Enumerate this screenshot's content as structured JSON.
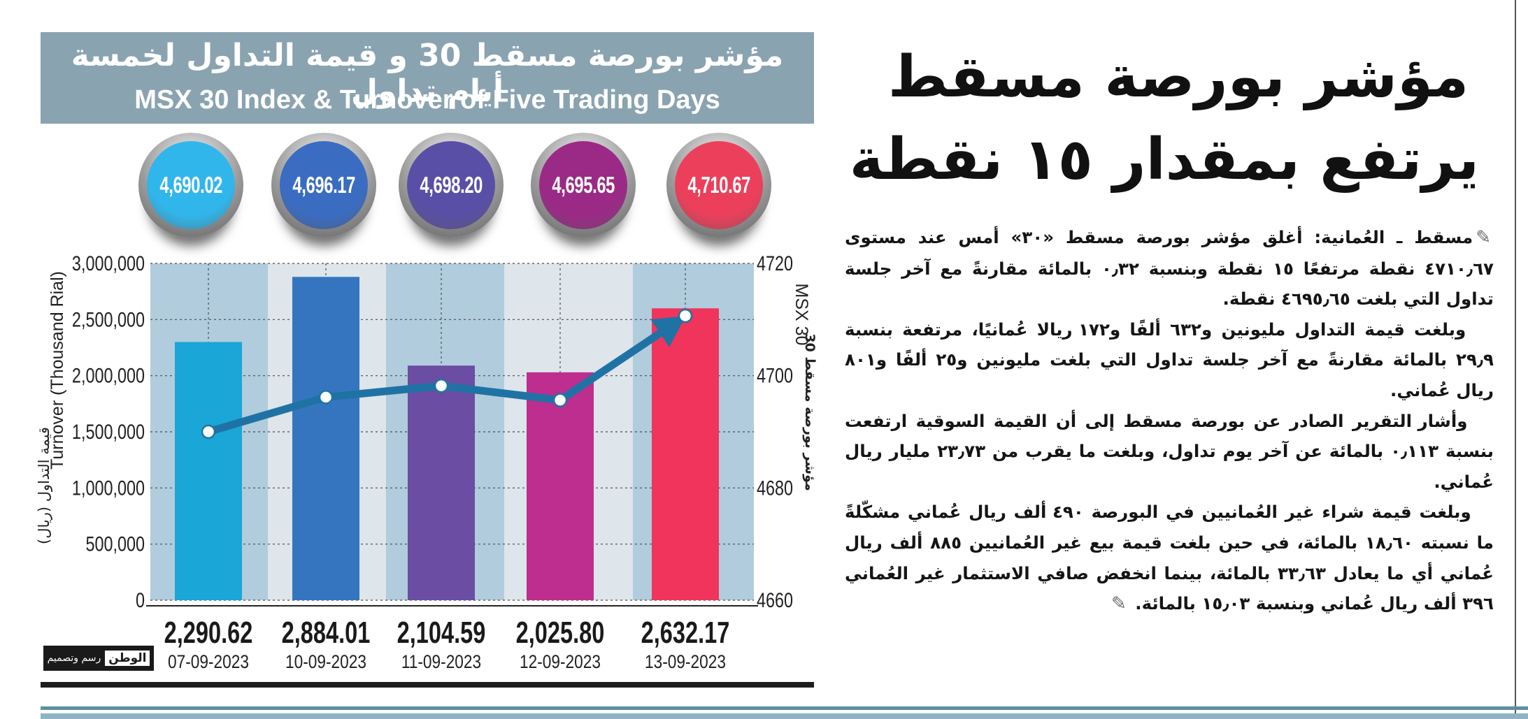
{
  "title": {
    "ar": "مؤشر بورصة مسقط 30 و قيمة التداول لخمسة أيام تداول",
    "en": "MSX 30 Index & Turnover of Five Trading Days"
  },
  "chart_data": {
    "type": "bar",
    "title": "MSX 30 Index & Turnover of Five Trading Days",
    "categories": [
      "07-09-2023",
      "10-09-2023",
      "11-09-2023",
      "12-09-2023",
      "13-09-2023"
    ],
    "series": [
      {
        "name": "Turnover (Thousand Rial)",
        "type": "bar",
        "axis": "left",
        "values": [
          2290.62,
          2884.01,
          2104.59,
          2025.8,
          2632.17
        ],
        "value_labels": [
          "2,290.62",
          "2,884.01",
          "2,104.59",
          "2,025.80",
          "2,632.17"
        ],
        "bar_heights_on_axis": [
          2300000,
          2880000,
          2090000,
          2030000,
          2600000
        ],
        "colors": [
          "#1aa6d6",
          "#3575c0",
          "#6b4da3",
          "#bd2e8f",
          "#f1345c"
        ]
      },
      {
        "name": "MSX 30",
        "type": "line",
        "axis": "right",
        "values": [
          4690.02,
          4696.17,
          4698.2,
          4695.65,
          4710.67
        ],
        "value_labels": [
          "4,690.02",
          "4,696.17",
          "4,698.20",
          "4,695.65",
          "4,710.67"
        ],
        "color": "#1f73a4"
      }
    ],
    "y_left": {
      "label": "Turnover (Thousand Rial)",
      "label_ar": "قيمة التداول (ريال)",
      "ylim": [
        0,
        3000000
      ],
      "ticks": [
        0,
        500000,
        1000000,
        1500000,
        2000000,
        2500000,
        3000000
      ],
      "tick_labels": [
        "0",
        "500,000",
        "1,000,000",
        "1,500,000",
        "2,000,000",
        "2,500,000",
        "3,000,000"
      ]
    },
    "y_right": {
      "label": "MSX 30",
      "label_ar": "مؤشر بورصة مسقط 30",
      "ylim": [
        4660,
        4720
      ],
      "ticks": [
        4660,
        4680,
        4700,
        4720
      ],
      "tick_labels": [
        "4660",
        "4680",
        "4700",
        "4720"
      ]
    },
    "bubble_colors": [
      "#31b6ec",
      "#3a6cc2",
      "#5a4fa6",
      "#9a2a86",
      "#ec3f5b"
    ],
    "band_colors": [
      "#b1ccdc",
      "#dee5eb"
    ],
    "grid": true
  },
  "logo": {
    "name": "الوطن",
    "credit": "رسم وتصميم"
  },
  "headline": {
    "line1": "مؤشر بورصة مسقط",
    "line2": "يرتفع بمقدار ١٥ نقطة"
  },
  "article": {
    "p1": "مسقط ـ العُمانية: أغلق مؤشر بورصة مسقط «٣٠» أمس عند مستوى ٤٧١٠٫٦٧ نقطة مرتفعًا ١٥ نقطة وبنسبة ٠٫٣٢ بالمائة مقارنةً مع آخر جلسة تداول التي بلغت ٤٦٩٥٫٦٥ نقطة.",
    "p2": "وبلغت قيمة التداول مليونين و٦٣٢ ألفًا و١٧٢ ريالا عُمانيًا، مرتفعة بنسبة ٢٩٫٩ بالمائة مقارنةً مع آخر جلسة تداول التي بلغت مليونين و٢٥ ألفًا و٨٠١ ريال عُماني.",
    "p3": "وأشار التقرير الصادر عن بورصة مسقط إلى أن القيمة السوقية ارتفعت بنسبة ٠٫١١٣ بالمائة عن آخر يوم تداول، وبلغت ما يقرب من ٢٣٫٧٣ مليار ريال عُماني.",
    "p4": "وبلغت قيمة شراء غير العُمانيين في البورصة ٤٩٠ ألف ريال عُماني مشكّلةً ما نسبته ١٨٫٦٠ بالمائة، في حين بلغت قيمة بيع غير العُمانيين ٨٨٥ ألف ريال عُماني أي ما يعادل ٣٣٫٦٣ بالمائة، بينما انخفض صافي الاستثمار غير العُماني ٣٩٦ ألف ريال عُماني وبنسبة ١٥٫٠٣ بالمائة."
  }
}
